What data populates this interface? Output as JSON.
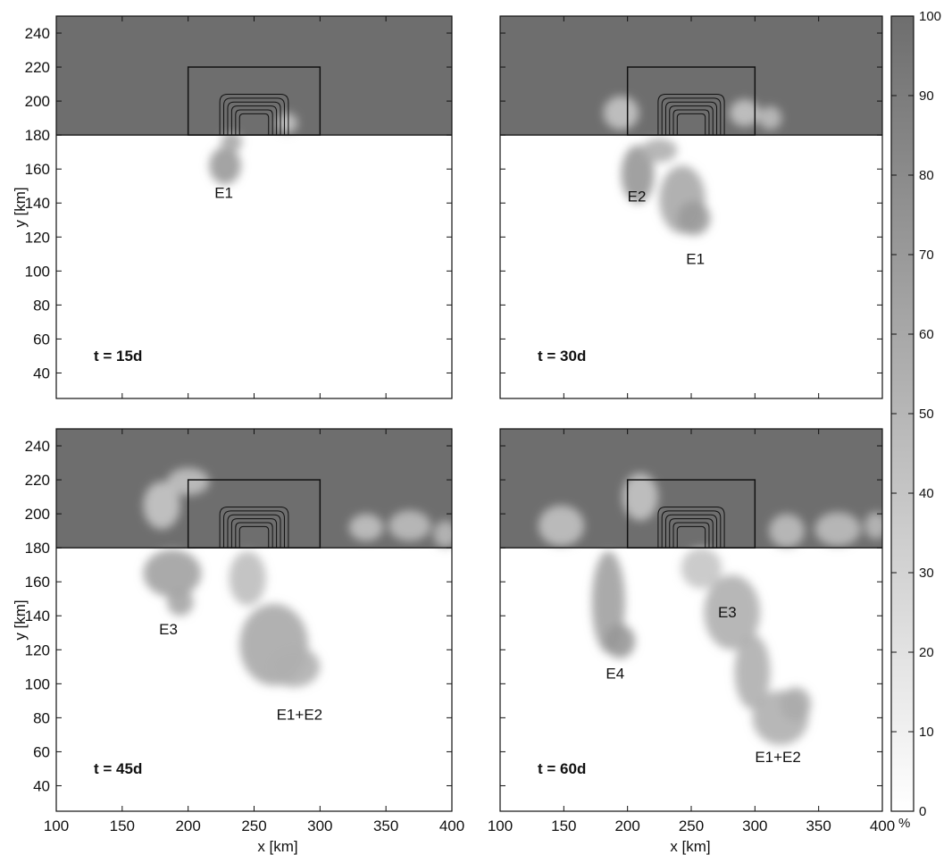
{
  "chart_data": {
    "type": "heatmap",
    "xlabel": "x [km]",
    "ylabel": "y [km]",
    "xlim": [
      100,
      400
    ],
    "ylim": [
      25,
      250
    ],
    "x_ticks": [
      100,
      150,
      200,
      250,
      300,
      350,
      400
    ],
    "y_ticks": [
      40,
      60,
      80,
      100,
      120,
      140,
      160,
      180,
      200,
      220,
      240
    ],
    "ice_edge_y": 180,
    "box": {
      "x0": 200,
      "x1": 300,
      "y0": 180,
      "y1": 220
    },
    "bathymetry_contours": {
      "center_x": 250,
      "base_y": 180,
      "count": 6
    },
    "colorbar": {
      "unit": "%",
      "range": [
        0,
        100
      ],
      "ticks": [
        0,
        10,
        20,
        30,
        40,
        50,
        60,
        70,
        80,
        90,
        100
      ],
      "low_color": "#ffffff",
      "high_color": "#6e6e6e"
    },
    "panels": [
      {
        "time_label": "t = 15d",
        "labels": [
          {
            "text": "E1",
            "x": 220,
            "y": 143
          }
        ],
        "blobs": [
          {
            "cx": 228,
            "cy": 162,
            "rx": 12,
            "ry": 11,
            "c": 70
          },
          {
            "cx": 233,
            "cy": 176,
            "rx": 8,
            "ry": 6,
            "c": 60
          },
          {
            "cx": 275,
            "cy": 187,
            "rx": 8,
            "ry": 6,
            "c": 40
          }
        ]
      },
      {
        "time_label": "t = 30d",
        "labels": [
          {
            "text": "E2",
            "x": 200,
            "y": 141
          },
          {
            "text": "E1",
            "x": 246,
            "y": 104
          }
        ],
        "blobs": [
          {
            "cx": 208,
            "cy": 157,
            "rx": 13,
            "ry": 17,
            "c": 72
          },
          {
            "cx": 243,
            "cy": 142,
            "rx": 18,
            "ry": 20,
            "c": 60
          },
          {
            "cx": 252,
            "cy": 131,
            "rx": 13,
            "ry": 10,
            "c": 70
          },
          {
            "cx": 225,
            "cy": 171,
            "rx": 14,
            "ry": 7,
            "c": 55
          },
          {
            "cx": 195,
            "cy": 193,
            "rx": 14,
            "ry": 10,
            "c": 40
          },
          {
            "cx": 292,
            "cy": 193,
            "rx": 12,
            "ry": 8,
            "c": 40
          },
          {
            "cx": 312,
            "cy": 190,
            "rx": 9,
            "ry": 7,
            "c": 45
          }
        ]
      },
      {
        "time_label": "t = 45d",
        "labels": [
          {
            "text": "E3",
            "x": 178,
            "y": 129
          },
          {
            "text": "E1+E2",
            "x": 267,
            "y": 79
          }
        ],
        "blobs": [
          {
            "cx": 265,
            "cy": 123,
            "rx": 26,
            "ry": 24,
            "c": 60
          },
          {
            "cx": 280,
            "cy": 110,
            "rx": 20,
            "ry": 12,
            "c": 55
          },
          {
            "cx": 188,
            "cy": 165,
            "rx": 22,
            "ry": 14,
            "c": 65
          },
          {
            "cx": 194,
            "cy": 148,
            "rx": 10,
            "ry": 8,
            "c": 62
          },
          {
            "cx": 245,
            "cy": 162,
            "rx": 14,
            "ry": 16,
            "c": 45
          },
          {
            "cx": 180,
            "cy": 205,
            "rx": 14,
            "ry": 14,
            "c": 38
          },
          {
            "cx": 200,
            "cy": 219,
            "rx": 16,
            "ry": 8,
            "c": 42
          },
          {
            "cx": 335,
            "cy": 192,
            "rx": 13,
            "ry": 8,
            "c": 42
          },
          {
            "cx": 368,
            "cy": 193,
            "rx": 16,
            "ry": 9,
            "c": 45
          },
          {
            "cx": 395,
            "cy": 188,
            "rx": 9,
            "ry": 8,
            "c": 48
          }
        ]
      },
      {
        "time_label": "t = 60d",
        "labels": [
          {
            "text": "E4",
            "x": 183,
            "y": 103
          },
          {
            "text": "E3",
            "x": 271,
            "y": 139
          },
          {
            "text": "E1+E2",
            "x": 300,
            "y": 54
          }
        ],
        "blobs": [
          {
            "cx": 185,
            "cy": 148,
            "rx": 13,
            "ry": 30,
            "c": 65
          },
          {
            "cx": 194,
            "cy": 125,
            "rx": 12,
            "ry": 10,
            "c": 72
          },
          {
            "cx": 282,
            "cy": 142,
            "rx": 22,
            "ry": 22,
            "c": 55
          },
          {
            "cx": 298,
            "cy": 107,
            "rx": 14,
            "ry": 22,
            "c": 55
          },
          {
            "cx": 320,
            "cy": 80,
            "rx": 22,
            "ry": 16,
            "c": 55
          },
          {
            "cx": 332,
            "cy": 88,
            "rx": 12,
            "ry": 10,
            "c": 58
          },
          {
            "cx": 258,
            "cy": 168,
            "rx": 16,
            "ry": 12,
            "c": 40
          },
          {
            "cx": 148,
            "cy": 193,
            "rx": 18,
            "ry": 12,
            "c": 42
          },
          {
            "cx": 210,
            "cy": 210,
            "rx": 14,
            "ry": 14,
            "c": 40
          },
          {
            "cx": 325,
            "cy": 190,
            "rx": 14,
            "ry": 10,
            "c": 45
          },
          {
            "cx": 365,
            "cy": 191,
            "rx": 18,
            "ry": 10,
            "c": 45
          },
          {
            "cx": 395,
            "cy": 193,
            "rx": 9,
            "ry": 8,
            "c": 48
          }
        ]
      }
    ]
  }
}
